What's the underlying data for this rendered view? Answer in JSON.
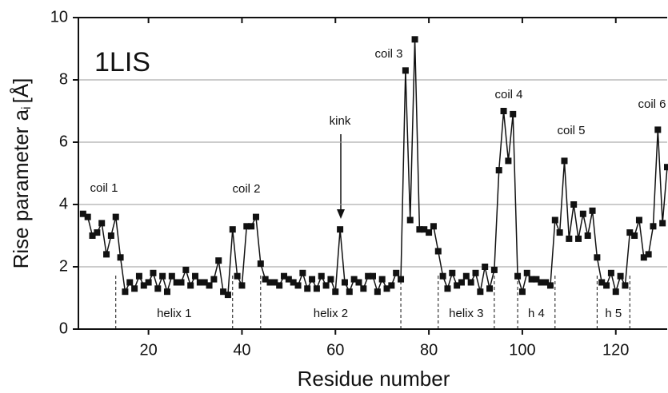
{
  "chart_data": {
    "type": "line",
    "panel_label": "1LIS",
    "xlabel": "Residue number",
    "ylabel": {
      "text": "Rise parameter a",
      "sub": "i",
      "unit": "[Å]"
    },
    "xlim": [
      5,
      131
    ],
    "xticks": [
      20,
      40,
      60,
      80,
      100,
      120
    ],
    "ylim": [
      0,
      10
    ],
    "yticks": [
      0,
      2,
      4,
      6,
      8,
      10
    ],
    "grid": true,
    "color": "#111111",
    "x": [
      6,
      7,
      8,
      9,
      10,
      11,
      12,
      13,
      14,
      15,
      16,
      17,
      18,
      19,
      20,
      21,
      22,
      23,
      24,
      25,
      26,
      27,
      28,
      29,
      30,
      31,
      32,
      33,
      34,
      35,
      36,
      37,
      38,
      39,
      40,
      41,
      42,
      43,
      44,
      45,
      46,
      47,
      48,
      49,
      50,
      51,
      52,
      53,
      54,
      55,
      56,
      57,
      58,
      59,
      60,
      61,
      62,
      63,
      64,
      65,
      66,
      67,
      68,
      69,
      70,
      71,
      72,
      73,
      74,
      75,
      76,
      77,
      78,
      79,
      80,
      81,
      82,
      83,
      84,
      85,
      86,
      87,
      88,
      89,
      90,
      91,
      92,
      93,
      94,
      95,
      96,
      97,
      98,
      99,
      100,
      101,
      102,
      103,
      104,
      105,
      106,
      107,
      108,
      109,
      110,
      111,
      112,
      113,
      114,
      115,
      116,
      117,
      118,
      119,
      120,
      121,
      122,
      123,
      124,
      125,
      126,
      127,
      128,
      129,
      130,
      131
    ],
    "values": [
      3.7,
      3.6,
      3.0,
      3.1,
      3.4,
      2.4,
      3.0,
      3.6,
      2.3,
      1.2,
      1.5,
      1.3,
      1.7,
      1.4,
      1.5,
      1.8,
      1.3,
      1.7,
      1.2,
      1.7,
      1.5,
      1.5,
      1.9,
      1.4,
      1.7,
      1.5,
      1.5,
      1.4,
      1.6,
      2.2,
      1.2,
      1.1,
      3.2,
      1.7,
      1.4,
      3.3,
      3.3,
      3.6,
      2.1,
      1.6,
      1.5,
      1.5,
      1.4,
      1.7,
      1.6,
      1.5,
      1.4,
      1.8,
      1.3,
      1.6,
      1.3,
      1.7,
      1.4,
      1.6,
      1.2,
      3.2,
      1.5,
      1.2,
      1.6,
      1.5,
      1.3,
      1.7,
      1.7,
      1.2,
      1.6,
      1.3,
      1.4,
      1.8,
      1.6,
      8.3,
      3.5,
      9.3,
      3.2,
      3.2,
      3.1,
      3.3,
      2.5,
      1.7,
      1.3,
      1.8,
      1.4,
      1.5,
      1.7,
      1.5,
      1.8,
      1.2,
      2.0,
      1.3,
      1.9,
      5.1,
      7.0,
      5.4,
      6.9,
      1.7,
      1.2,
      1.8,
      1.6,
      1.6,
      1.5,
      1.5,
      1.4,
      3.5,
      3.1,
      5.4,
      2.9,
      4.0,
      2.9,
      3.7,
      3.0,
      3.8,
      2.3,
      1.5,
      1.4,
      1.8,
      1.2,
      1.7,
      1.4,
      3.1,
      3.0,
      3.5,
      2.3,
      2.4,
      3.3,
      6.4,
      3.4,
      5.2
    ],
    "segments": [
      {
        "label": "helix 1",
        "start": 13,
        "end": 38
      },
      {
        "label": "helix 2",
        "start": 44,
        "end": 74
      },
      {
        "label": "helix 3",
        "start": 82,
        "end": 94
      },
      {
        "label": "h 4",
        "start": 99,
        "end": 107
      },
      {
        "label": "h 5",
        "start": 116,
        "end": 123
      }
    ],
    "annotations": [
      "coil 1",
      "coil 2",
      "kink",
      "coil 3",
      "coil 4",
      "coil 5",
      "coil 6"
    ]
  }
}
